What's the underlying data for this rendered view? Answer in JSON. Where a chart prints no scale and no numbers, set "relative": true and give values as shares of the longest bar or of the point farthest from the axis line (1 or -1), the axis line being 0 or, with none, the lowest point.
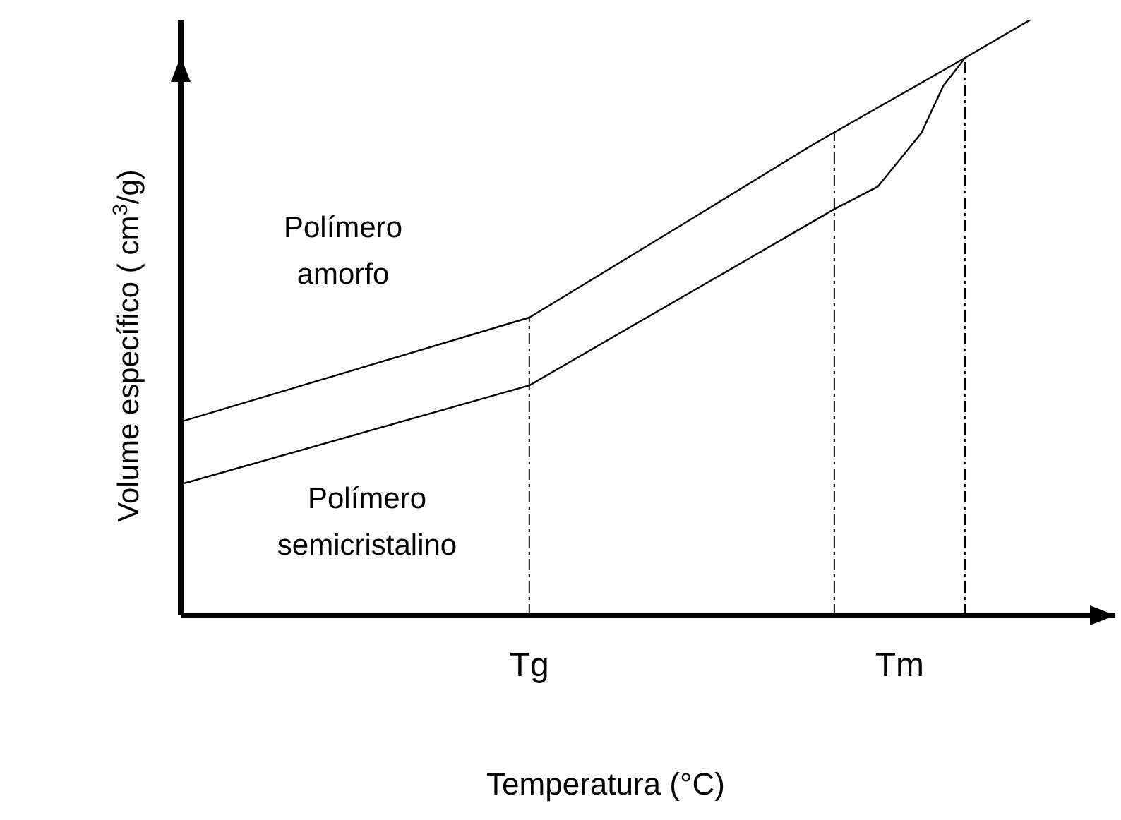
{
  "chart_data": {
    "type": "line",
    "relative": true,
    "xlabel": "Temperatura (°C)",
    "ylabel": "Volume específico ( cm$^{3}$/g)",
    "categories": [
      null,
      null,
      null,
      null,
      null,
      null,
      null,
      null,
      null,
      null,
      null,
      null,
      null,
      null,
      null,
      null,
      "Tg",
      null,
      null,
      null,
      null,
      null,
      null,
      null,
      null,
      null,
      null,
      null,
      null,
      null,
      null,
      null,
      null,
      "Tm",
      null,
      null,
      null,
      null,
      null,
      null
    ],
    "series": [
      {
        "name": "Polímero amorfo",
        "color": "#000000",
        "values": [
          0.325,
          null,
          null,
          null,
          null,
          null,
          null,
          null,
          null,
          null,
          null,
          null,
          null,
          null,
          null,
          null,
          0.5,
          null,
          null,
          null,
          null,
          null,
          null,
          null,
          0.678,
          null,
          null,
          null,
          null,
          0.79,
          null,
          null,
          null,
          null,
          null,
          null,
          0.936,
          null,
          null,
          1
        ]
      },
      {
        "name": "Polímero semicristalino",
        "color": "#000000",
        "values": [
          0.22,
          null,
          null,
          null,
          null,
          null,
          null,
          null,
          null,
          null,
          null,
          null,
          null,
          null,
          null,
          null,
          0.386,
          null,
          null,
          null,
          null,
          null,
          null,
          null,
          null,
          null,
          null,
          null,
          null,
          null,
          0.682,
          null,
          0.72,
          null,
          0.81,
          0.889,
          0.936,
          null,
          null,
          null
        ]
      }
    ],
    "ref_lines": [
      {
        "axis": "x",
        "value": "Tg",
        "line_style": "dashed",
        "color": "#000000"
      }
    ],
    "marker": "none",
    "line_style": "solid"
  }
}
